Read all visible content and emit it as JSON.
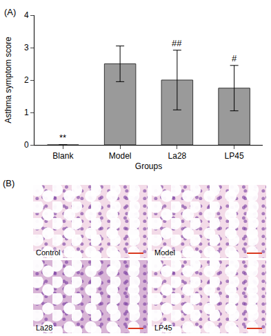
{
  "panel_label": "(A)",
  "chart_data": {
    "type": "bar",
    "x_label": "Groups",
    "y_label": "Asthma symptom score",
    "categories": [
      "Blank",
      "Model",
      "La28",
      "LP45"
    ],
    "values": [
      0,
      2.5,
      2.0,
      1.75
    ],
    "errors": [
      0,
      0.55,
      0.92,
      0.7
    ],
    "significance": [
      "**",
      null,
      "##",
      "#"
    ],
    "color": "#9a9a9a",
    "ylim": [
      0,
      4
    ],
    "yticks": [
      0,
      1,
      2,
      3,
      4
    ],
    "grid": false
  },
  "panel_b": {
    "label": "(B)",
    "images": [
      "Control",
      "Model",
      "La28",
      "LP45"
    ]
  }
}
